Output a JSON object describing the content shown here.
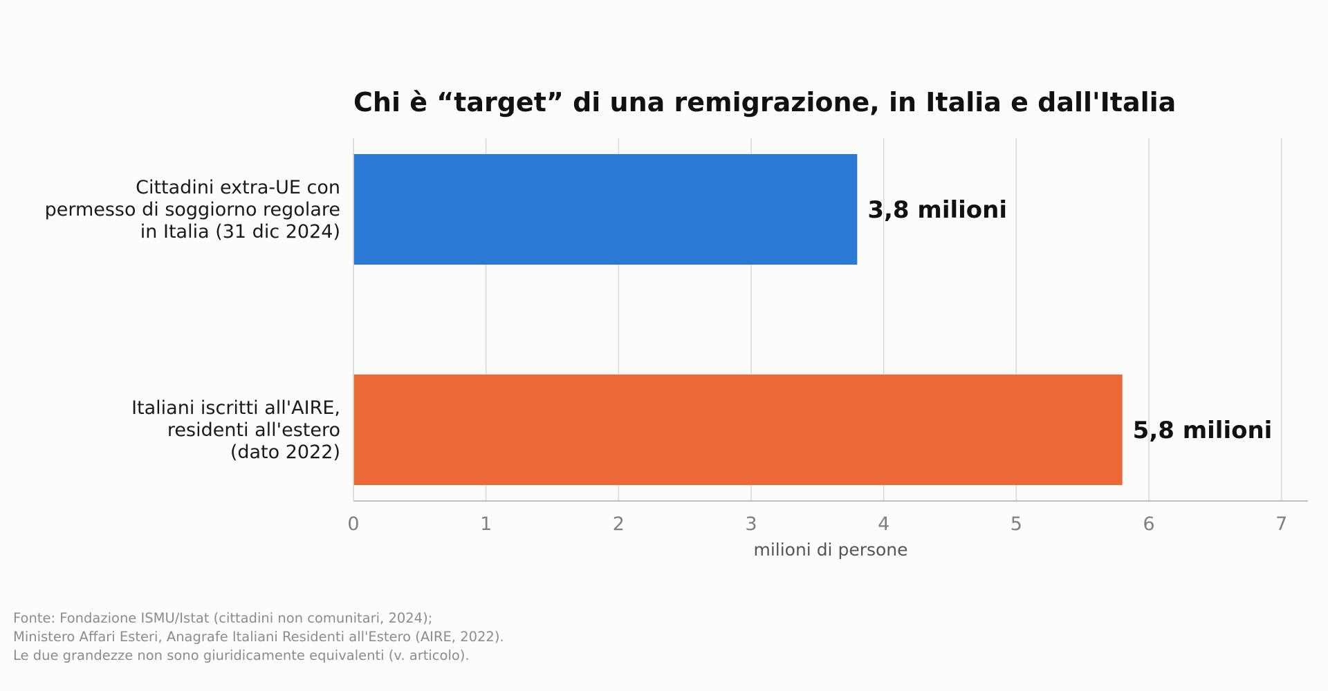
{
  "chart_data": {
    "type": "bar",
    "orientation": "horizontal",
    "title": "Chi è “target” di una remigrazione, in Italia e dall'Italia",
    "xlabel": "milioni di persone",
    "ylabel": "",
    "xlim": [
      0,
      7.2
    ],
    "x_ticks": [
      0,
      1,
      2,
      3,
      4,
      5,
      6,
      7
    ],
    "grid": "vertical",
    "legend": "none",
    "categories": [
      [
        "Cittadini extra-UE con",
        "permesso di soggiorno regolare",
        "in Italia (31 dic 2024)"
      ],
      [
        "Italiani iscritti all'AIRE,",
        "residenti all'estero",
        "(dato 2022)"
      ]
    ],
    "values": [
      3.8,
      5.8
    ],
    "data_labels": [
      "3,8 milioni",
      "5,8 milioni"
    ],
    "colors": [
      "#2a7ad5",
      "#ea6935"
    ]
  },
  "footnote": [
    "Fonte: Fondazione ISMU/Istat (cittadini non comunitari, 2024);",
    "Ministero Affari Esteri, Anagrafe Italiani Residenti all'Estero (AIRE, 2022).",
    "Le due grandezze non sono giuridicamente equivalenti (v. articolo)."
  ]
}
